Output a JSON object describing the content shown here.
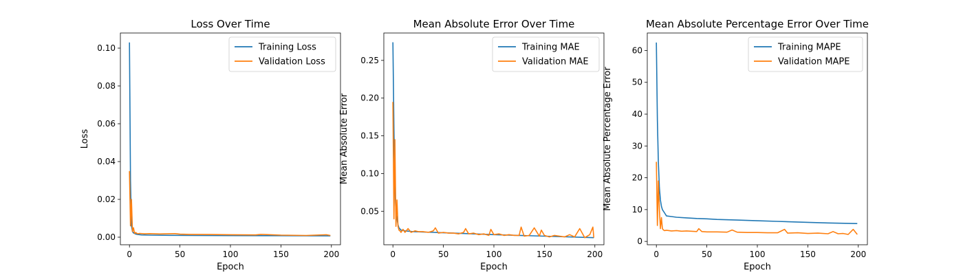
{
  "colors": {
    "training": "#1f77b4",
    "validation": "#ff7f0e"
  },
  "chart_data": [
    {
      "type": "line",
      "title": "Loss Over Time",
      "xlabel": "Epoch",
      "ylabel": "Loss",
      "xlim": [
        -9,
        209
      ],
      "ylim": [
        -0.004,
        0.108
      ],
      "xticks": [
        0,
        50,
        100,
        150,
        200
      ],
      "yticks": [
        0.0,
        0.02,
        0.04,
        0.06,
        0.08,
        0.1
      ],
      "ytick_labels": [
        "0.00",
        "0.02",
        "0.04",
        "0.06",
        "0.08",
        "0.10"
      ],
      "legend": "top-right",
      "grid": false,
      "series": [
        {
          "name": "Training Loss",
          "x": [
            0,
            1,
            2,
            3,
            4,
            6,
            8,
            12,
            20,
            40,
            60,
            100,
            150,
            199
          ],
          "y": [
            0.103,
            0.03,
            0.006,
            0.003,
            0.0022,
            0.0017,
            0.0014,
            0.0012,
            0.0011,
            0.001,
            0.0009,
            0.00085,
            0.0008,
            0.0007
          ]
        },
        {
          "name": "Validation Loss",
          "x": [
            0,
            1,
            2,
            3,
            4,
            5,
            6,
            8,
            10,
            15,
            20,
            30,
            45,
            50,
            60,
            80,
            100,
            125,
            130,
            150,
            175,
            195,
            199
          ],
          "y": [
            0.035,
            0.006,
            0.02,
            0.003,
            0.005,
            0.002,
            0.0025,
            0.0018,
            0.002,
            0.0018,
            0.0019,
            0.0017,
            0.0019,
            0.0016,
            0.0015,
            0.0014,
            0.0013,
            0.0012,
            0.0015,
            0.0011,
            0.0009,
            0.0013,
            0.0009
          ]
        }
      ]
    },
    {
      "type": "line",
      "title": "Mean Absolute Error Over Time",
      "xlabel": "Epoch",
      "ylabel": "Mean Absolute Error",
      "xlim": [
        -9,
        209
      ],
      "ylim": [
        0.0056,
        0.2863
      ],
      "xticks": [
        0,
        50,
        100,
        150,
        200
      ],
      "yticks": [
        0.05,
        0.1,
        0.15,
        0.2,
        0.25
      ],
      "ytick_labels": [
        "0.05",
        "0.10",
        "0.15",
        "0.20",
        "0.25"
      ],
      "legend": "top-right",
      "grid": false,
      "series": [
        {
          "name": "Training MAE",
          "x": [
            0,
            1,
            2,
            3,
            4,
            5,
            6,
            8,
            12,
            20,
            40,
            60,
            100,
            150,
            199
          ],
          "y": [
            0.274,
            0.16,
            0.08,
            0.05,
            0.04,
            0.032,
            0.028,
            0.025,
            0.024,
            0.023,
            0.022,
            0.021,
            0.019,
            0.017,
            0.015
          ]
        },
        {
          "name": "Validation MAE",
          "x": [
            0,
            1,
            2,
            3,
            4,
            5,
            6,
            7,
            8,
            10,
            12,
            15,
            18,
            22,
            25,
            30,
            35,
            40,
            42,
            45,
            50,
            55,
            60,
            65,
            70,
            72,
            75,
            80,
            85,
            90,
            95,
            97,
            100,
            105,
            110,
            115,
            120,
            125,
            127,
            130,
            135,
            140,
            145,
            147,
            150,
            155,
            160,
            165,
            170,
            175,
            180,
            185,
            190,
            195,
            198,
            199
          ],
          "y": [
            0.195,
            0.04,
            0.145,
            0.03,
            0.065,
            0.03,
            0.025,
            0.024,
            0.022,
            0.026,
            0.022,
            0.027,
            0.022,
            0.024,
            0.023,
            0.023,
            0.022,
            0.024,
            0.028,
            0.021,
            0.022,
            0.021,
            0.021,
            0.02,
            0.022,
            0.027,
            0.02,
            0.021,
            0.019,
            0.02,
            0.018,
            0.026,
            0.019,
            0.02,
            0.018,
            0.019,
            0.018,
            0.018,
            0.029,
            0.017,
            0.018,
            0.028,
            0.017,
            0.025,
            0.018,
            0.016,
            0.018,
            0.017,
            0.016,
            0.019,
            0.016,
            0.027,
            0.015,
            0.019,
            0.029,
            0.015
          ]
        }
      ]
    },
    {
      "type": "line",
      "title": "Mean Absolute Percentage Error Over Time",
      "xlabel": "Epoch",
      "ylabel": "Mean Absolute Percentage Error",
      "xlim": [
        -9,
        209
      ],
      "ylim": [
        -1.05,
        65.5
      ],
      "xticks": [
        0,
        50,
        100,
        150,
        200
      ],
      "yticks": [
        0,
        10,
        20,
        30,
        40,
        50,
        60
      ],
      "ytick_labels": [
        "0",
        "10",
        "20",
        "30",
        "40",
        "50",
        "60"
      ],
      "legend": "top-right",
      "grid": false,
      "series": [
        {
          "name": "Training MAPE",
          "x": [
            0,
            1,
            2,
            3,
            4,
            5,
            6,
            8,
            10,
            15,
            20,
            30,
            40,
            50,
            60,
            80,
            100,
            120,
            150,
            170,
            199
          ],
          "y": [
            62.5,
            38,
            25,
            17,
            13,
            11,
            10,
            9,
            8,
            7.8,
            7.6,
            7.4,
            7.2,
            7.1,
            6.9,
            6.7,
            6.5,
            6.3,
            6.0,
            5.8,
            5.6
          ]
        },
        {
          "name": "Validation MAPE",
          "x": [
            0,
            1,
            2,
            3,
            4,
            5,
            6,
            7,
            8,
            10,
            15,
            20,
            25,
            30,
            40,
            42,
            45,
            50,
            60,
            70,
            75,
            80,
            90,
            100,
            110,
            120,
            127,
            130,
            140,
            150,
            160,
            170,
            175,
            180,
            185,
            190,
            195,
            199
          ],
          "y": [
            25,
            5,
            19,
            10,
            4,
            7.5,
            4,
            3.6,
            3.4,
            3.5,
            3.3,
            3.4,
            3.2,
            3.3,
            3.1,
            4,
            3.1,
            3.0,
            3.0,
            2.9,
            3.6,
            2.9,
            2.8,
            2.8,
            2.7,
            2.7,
            3.8,
            2.6,
            2.7,
            2.5,
            2.6,
            2.4,
            3.1,
            2.4,
            2.5,
            2.2,
            3.8,
            2.2
          ]
        }
      ]
    }
  ]
}
